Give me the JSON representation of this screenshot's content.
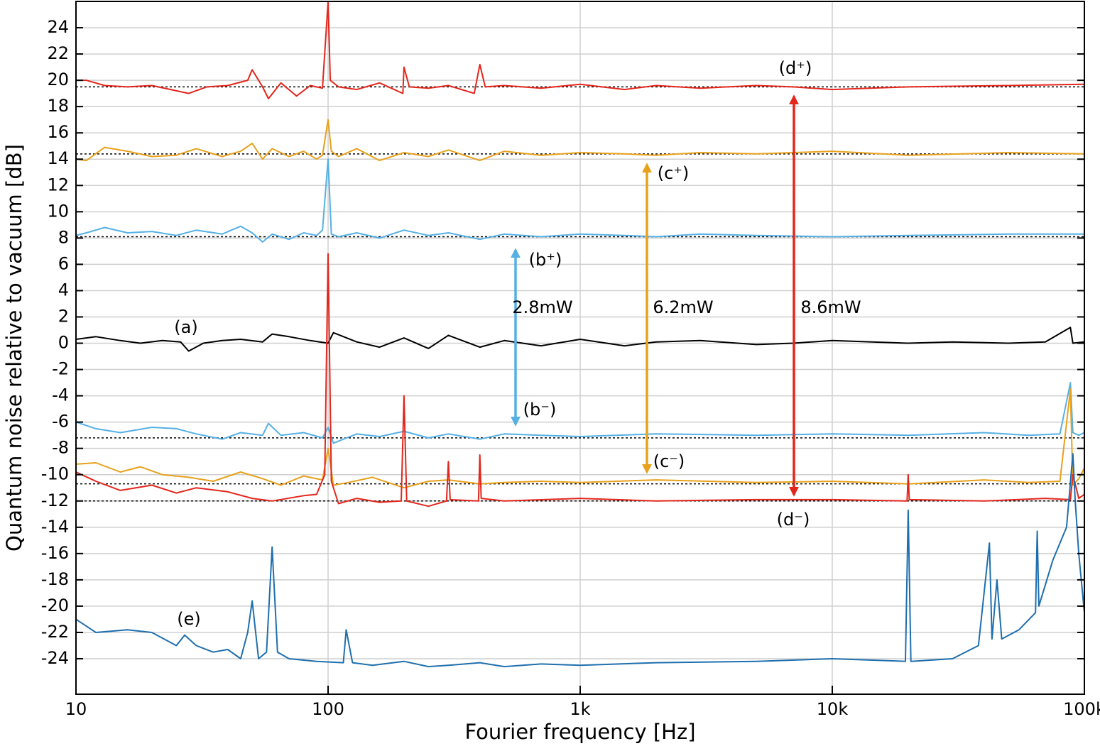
{
  "chart_data": {
    "type": "line",
    "x_label": "Fourier frequency [Hz]",
    "y_label": "Quantum noise relative to vacuum [dB]",
    "x_scale": "log",
    "grid": true,
    "xlim": [
      10,
      100000
    ],
    "ylim": [
      -26.7,
      26
    ],
    "xticks": [
      10,
      100,
      {
        "value": 1000,
        "label": "1k"
      },
      {
        "value": 10000,
        "label": "10k"
      },
      {
        "value": 100000,
        "label": "100k"
      }
    ],
    "yticks": [
      -24,
      -22,
      -20,
      -18,
      -16,
      -14,
      -12,
      -10,
      -8,
      -6,
      -4,
      -2,
      0,
      2,
      4,
      6,
      8,
      10,
      12,
      14,
      16,
      18,
      20,
      22,
      24
    ],
    "reference_lines": [
      19.5,
      14.4,
      8.1,
      -7.2,
      -10.7,
      -12.0
    ],
    "annotations": [
      "(a)",
      "(b⁺)",
      "(b⁻)",
      "(c⁺)",
      "(c⁻)",
      "(d⁺)",
      "(d⁻)",
      "(e)",
      "2.8mW",
      "6.2mW",
      "8.6mW"
    ],
    "series": [
      {
        "color": "#000000",
        "x": [
          10,
          12,
          15,
          18,
          22,
          26,
          28,
          32,
          38,
          45,
          55,
          60,
          70,
          85,
          100,
          105,
          130,
          160,
          200,
          250,
          300,
          400,
          500,
          700,
          1000,
          1500,
          2000,
          3000,
          5000,
          7000,
          10000,
          20000,
          30000,
          50000,
          70000,
          88000,
          90000,
          100000
        ],
        "values": [
          0.3,
          0.5,
          0.2,
          0,
          0.2,
          0.1,
          -0.6,
          0,
          0.2,
          0.3,
          0.1,
          0.7,
          0.5,
          0.2,
          0,
          0.8,
          0.1,
          -0.3,
          0.4,
          -0.4,
          0.6,
          -0.3,
          0.2,
          -0.2,
          0.3,
          -0.2,
          0.1,
          0.2,
          -0.1,
          0,
          0.2,
          0,
          0.1,
          0,
          0.1,
          1.2,
          0,
          0.1
        ]
      },
      {
        "color": "#e3261c",
        "x": [
          10,
          11,
          13,
          16,
          20,
          25,
          28,
          33,
          40,
          48,
          50,
          55,
          58,
          65,
          75,
          85,
          95,
          100,
          102,
          110,
          130,
          160,
          198,
          200,
          210,
          250,
          300,
          380,
          400,
          420,
          500,
          700,
          1000,
          1500,
          2000,
          3000,
          5000,
          7000,
          10000,
          20000,
          50000,
          100000
        ],
        "values": [
          20,
          20,
          19.6,
          19.5,
          19.6,
          19.2,
          19,
          19.5,
          19.6,
          20,
          20.8,
          19.5,
          18.6,
          19.8,
          18.8,
          19.6,
          19.4,
          26,
          20,
          19.5,
          19.3,
          19.8,
          19,
          21,
          19.5,
          19.4,
          19.6,
          19,
          21.2,
          19.5,
          19.6,
          19.4,
          19.7,
          19.3,
          19.6,
          19.4,
          19.6,
          19.5,
          19.3,
          19.5,
          19.6,
          19.7
        ]
      },
      {
        "color": "#e8a11c",
        "x": [
          10,
          11,
          13,
          16,
          20,
          25,
          30,
          38,
          45,
          50,
          55,
          60,
          70,
          80,
          90,
          95,
          100,
          103,
          110,
          130,
          160,
          200,
          250,
          300,
          400,
          500,
          700,
          1000,
          1500,
          2000,
          3000,
          5000,
          10000,
          20000,
          50000,
          100000
        ],
        "values": [
          14,
          13.9,
          14.9,
          14.6,
          14.2,
          14.3,
          14.8,
          14.2,
          14.6,
          15.2,
          14,
          14.8,
          14.2,
          14.6,
          14,
          14.3,
          17,
          14.6,
          14.2,
          14.8,
          13.9,
          14.5,
          14.2,
          14.7,
          13.9,
          14.6,
          14.3,
          14.5,
          14.4,
          14.3,
          14.5,
          14.4,
          14.6,
          14.3,
          14.5,
          14.4
        ]
      },
      {
        "color": "#56b0e4",
        "x": [
          10,
          11,
          13,
          16,
          20,
          25,
          30,
          38,
          45,
          50,
          55,
          60,
          70,
          80,
          90,
          95,
          100,
          103,
          110,
          130,
          160,
          200,
          250,
          300,
          400,
          500,
          700,
          1000,
          1500,
          2000,
          3000,
          5000,
          10000,
          20000,
          50000,
          100000
        ],
        "values": [
          8.2,
          8.4,
          8.8,
          8.4,
          8.5,
          8.2,
          8.6,
          8.3,
          8.9,
          8.4,
          7.7,
          8.3,
          7.9,
          8.4,
          8.2,
          8.6,
          14,
          8.3,
          8.1,
          8.4,
          8.0,
          8.6,
          8.2,
          8.4,
          7.9,
          8.3,
          8.1,
          8.3,
          8.2,
          8.1,
          8.3,
          8.2,
          8.1,
          8.2,
          8.3,
          8.3
        ]
      },
      {
        "color": "#56b0e4",
        "x": [
          10,
          12,
          15,
          20,
          25,
          30,
          38,
          45,
          55,
          58,
          65,
          80,
          95,
          100,
          105,
          130,
          160,
          200,
          250,
          300,
          400,
          500,
          700,
          1000,
          2000,
          5000,
          10000,
          20000,
          40000,
          60000,
          80000,
          88000,
          90000,
          95000,
          100000
        ],
        "values": [
          -6,
          -6.5,
          -6.8,
          -6.4,
          -6.5,
          -6.9,
          -7.3,
          -6.8,
          -7,
          -6.1,
          -7,
          -6.8,
          -7.2,
          -6.4,
          -7.6,
          -6.9,
          -7.1,
          -6.7,
          -7.2,
          -6.9,
          -7.3,
          -6.9,
          -7.0,
          -7.1,
          -6.9,
          -7.0,
          -6.9,
          -7.0,
          -6.8,
          -7.0,
          -6.9,
          -3,
          -6.8,
          -7.0,
          -6.8
        ]
      },
      {
        "color": "#e8a11c",
        "x": [
          10,
          12,
          15,
          18,
          22,
          28,
          35,
          45,
          55,
          65,
          80,
          95,
          100,
          105,
          120,
          150,
          200,
          250,
          300,
          400,
          500,
          700,
          1000,
          2000,
          5000,
          10000,
          20000,
          40000,
          60000,
          80000,
          88000,
          90000,
          95000,
          100000
        ],
        "values": [
          -9.2,
          -9.1,
          -9.8,
          -9.4,
          -10,
          -10.2,
          -10.5,
          -9.8,
          -10.3,
          -10.8,
          -10.1,
          -10.4,
          -8,
          -10.8,
          -10.6,
          -10.2,
          -11,
          -10.5,
          -10.4,
          -10.7,
          -10.6,
          -10.5,
          -10.6,
          -10.4,
          -10.6,
          -10.5,
          -10.7,
          -10.4,
          -10.6,
          -10.5,
          -3.5,
          -10.8,
          -10.3,
          -9.5
        ]
      },
      {
        "color": "#e3261c",
        "x": [
          10,
          12,
          15,
          20,
          25,
          30,
          40,
          50,
          60,
          80,
          90,
          97,
          100,
          103,
          110,
          130,
          160,
          195,
          200,
          205,
          250,
          295,
          300,
          305,
          395,
          400,
          405,
          500,
          1000,
          2000,
          5000,
          10000,
          19800,
          20000,
          20200,
          40000,
          70000,
          88000,
          90000,
          95000,
          100000
        ],
        "values": [
          -9.8,
          -10.5,
          -11.2,
          -10.8,
          -11.4,
          -11,
          -11.3,
          -11.8,
          -12,
          -11.6,
          -11.5,
          -10,
          6.8,
          -10.5,
          -12.2,
          -11.8,
          -12.1,
          -12,
          -4,
          -12,
          -12.4,
          -12,
          -9,
          -11.9,
          -12,
          -8.5,
          -11.8,
          -12,
          -11.8,
          -12,
          -11.9,
          -11.9,
          -12,
          -10,
          -11.9,
          -12,
          -11.8,
          -11.9,
          -10,
          -11.8,
          -11.5
        ]
      },
      {
        "color": "#1f6fae",
        "x": [
          10,
          12,
          16,
          20,
          25,
          27,
          30,
          35,
          40,
          45,
          48,
          50,
          53,
          57,
          60,
          63,
          70,
          90,
          115,
          118,
          125,
          150,
          200,
          250,
          300,
          400,
          500,
          700,
          1000,
          2000,
          5000,
          10000,
          19500,
          20000,
          20500,
          30000,
          38000,
          42000,
          43000,
          45000,
          47000,
          55000,
          64000,
          65000,
          66000,
          75000,
          85000,
          90000,
          92000,
          95000,
          100000
        ],
        "values": [
          -21,
          -22,
          -21.8,
          -22,
          -23,
          -22.2,
          -23,
          -23.5,
          -23.3,
          -24,
          -22,
          -19.6,
          -24,
          -23.5,
          -15.5,
          -23.5,
          -24,
          -24.2,
          -24.3,
          -21.8,
          -24.3,
          -24.5,
          -24.2,
          -24.6,
          -24.5,
          -24.3,
          -24.6,
          -24.4,
          -24.5,
          -24.3,
          -24.2,
          -24,
          -24.2,
          -12.7,
          -24.2,
          -24,
          -23,
          -15.2,
          -22.5,
          -18,
          -22.5,
          -21.8,
          -20.5,
          -14.3,
          -20,
          -16.5,
          -14,
          -8.4,
          -12,
          -16,
          -20.5
        ]
      }
    ]
  }
}
